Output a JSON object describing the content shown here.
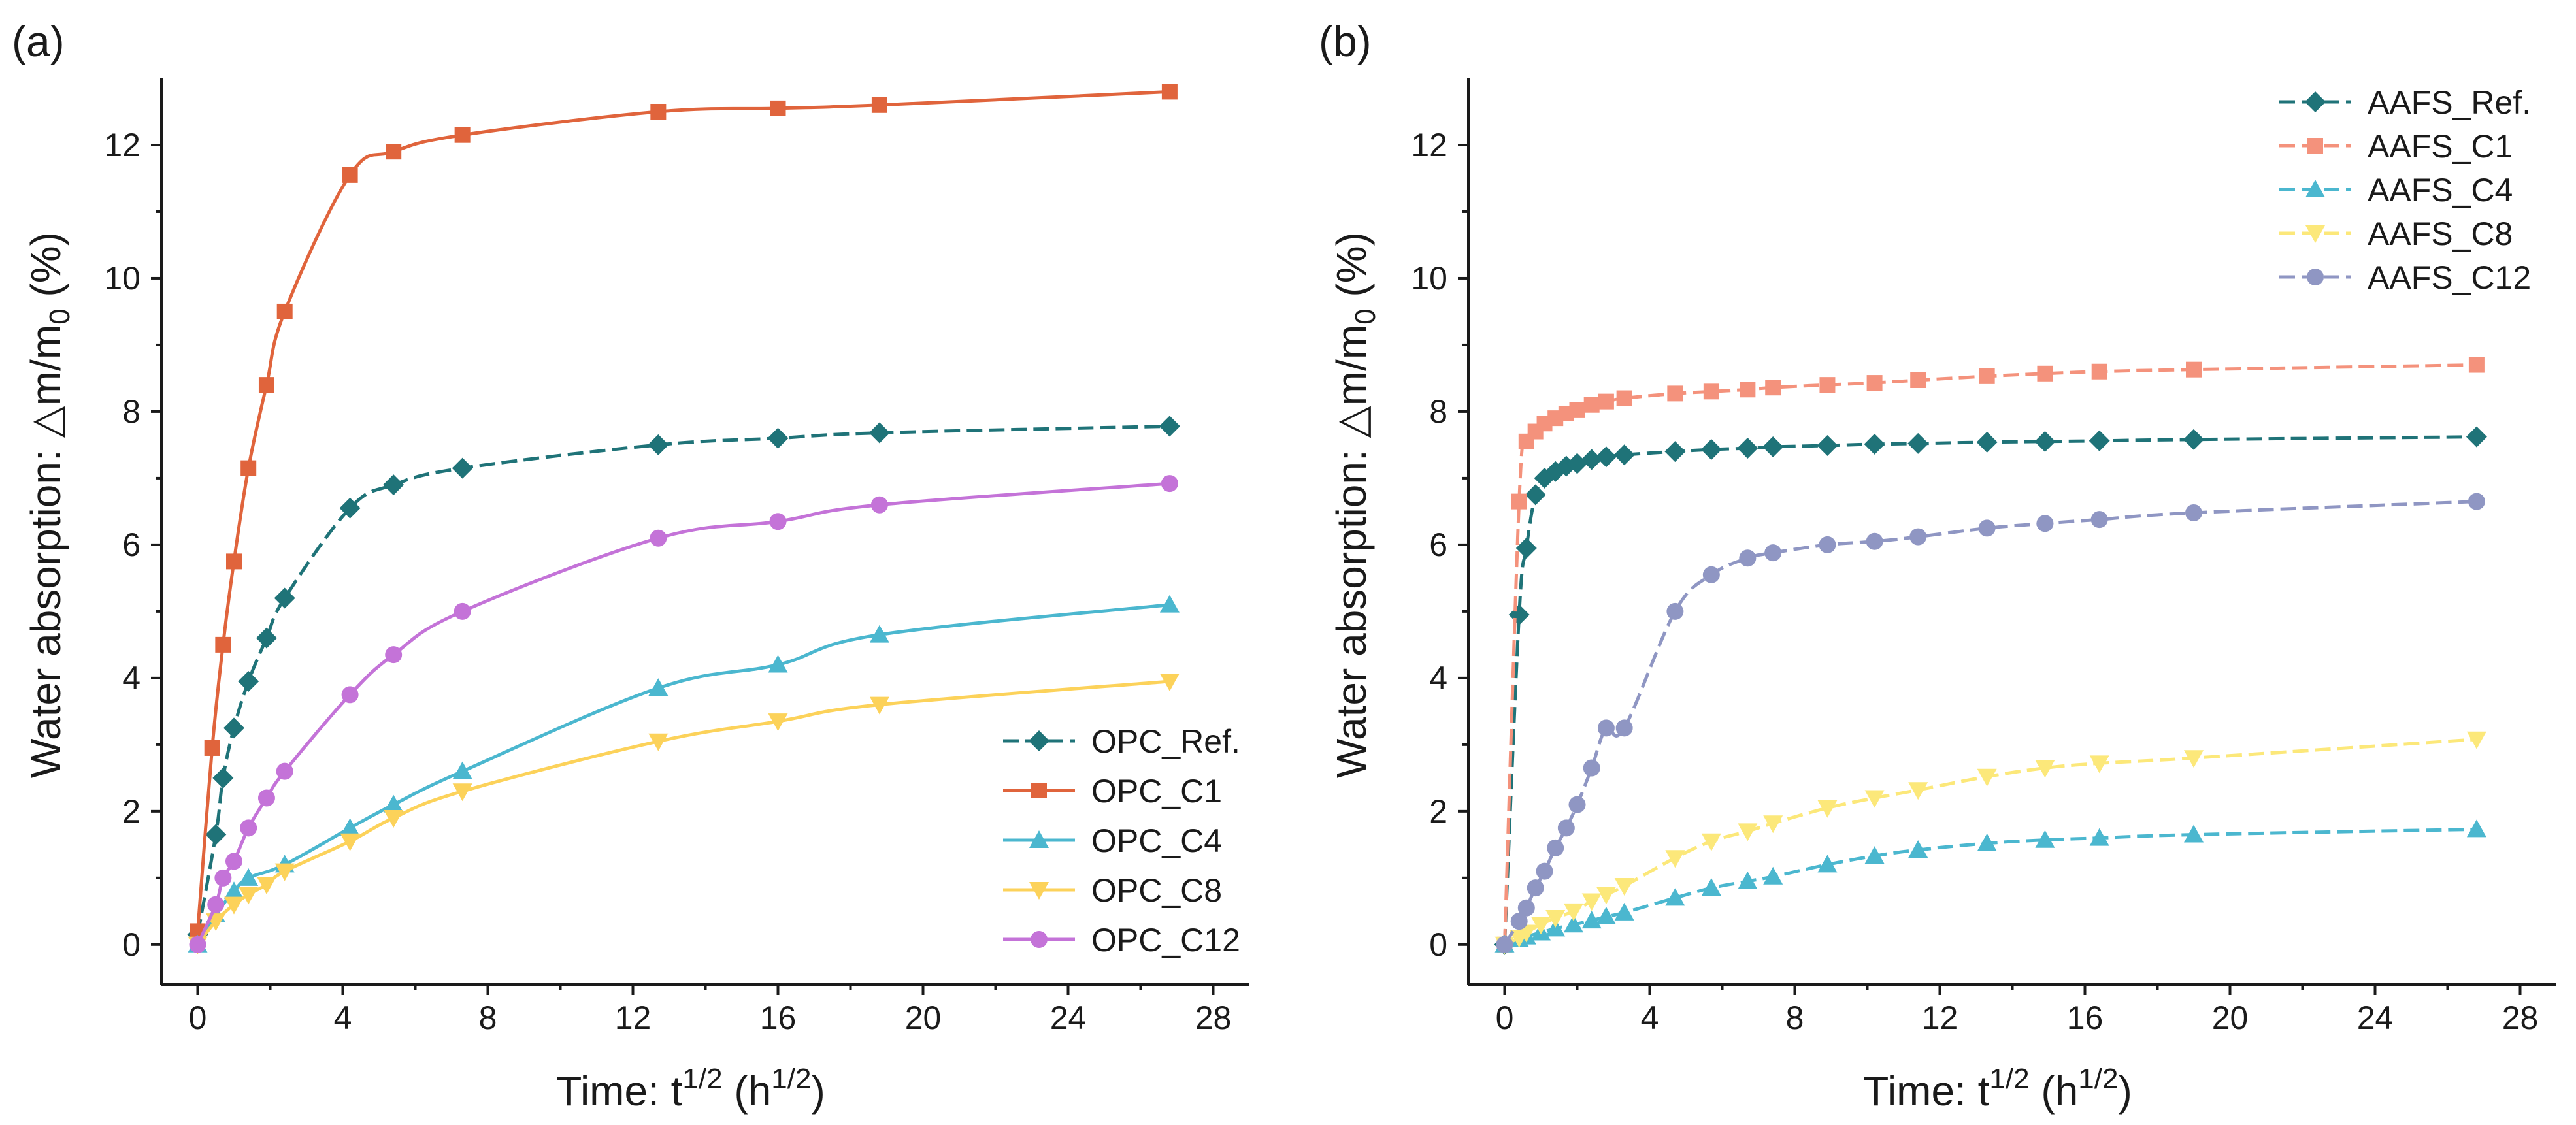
{
  "panels": [
    {
      "label": "(a)",
      "ylabel_main": "Water absorption: △m/m",
      "ylabel_sub": "0",
      "ylabel_tail": " (%)",
      "xlabel_main": "Time: t",
      "xlabel_sup": "1/2",
      "xlabel_mid": " (h",
      "xlabel_sup2": "1/2",
      "xlabel_tail": ")"
    },
    {
      "label": "(b)",
      "ylabel_main": "Water absorption: △m/m",
      "ylabel_sub": "0",
      "ylabel_tail": " (%)",
      "xlabel_main": "Time: t",
      "xlabel_sup": "1/2",
      "xlabel_mid": " (h",
      "xlabel_sup2": "1/2",
      "xlabel_tail": ")"
    }
  ],
  "chart_data": [
    {
      "type": "line",
      "panel": "(a)",
      "xlim": [
        -1,
        29
      ],
      "ylim": [
        -0.6,
        13.0
      ],
      "xticks": [
        0,
        4,
        8,
        12,
        16,
        20,
        24,
        28
      ],
      "yticks": [
        0,
        2,
        4,
        6,
        8,
        10,
        12
      ],
      "xtick_labels": [
        "0",
        "4",
        "8",
        "12",
        "16",
        "20",
        "24",
        "28"
      ],
      "ytick_labels": [
        "0",
        "2",
        "4",
        "6",
        "8",
        "10",
        "12"
      ],
      "legend_position": "bottom-right",
      "series": [
        {
          "name": "OPC_Ref.",
          "marker": "diamond",
          "color": "#1f7378",
          "dash": "dashed",
          "x": [
            0,
            0.5,
            0.7,
            1.0,
            1.4,
            1.9,
            2.4,
            4.2,
            5.4,
            7.3,
            12.7,
            16.0,
            18.8,
            26.8
          ],
          "y": [
            0.15,
            1.65,
            2.5,
            3.25,
            3.95,
            4.6,
            5.2,
            6.55,
            6.9,
            7.15,
            7.5,
            7.6,
            7.68,
            7.78
          ]
        },
        {
          "name": "OPC_C1",
          "marker": "square",
          "color": "#e0643c",
          "dash": "solid",
          "x": [
            0,
            0.4,
            0.7,
            1.0,
            1.4,
            1.9,
            2.4,
            4.2,
            5.4,
            7.3,
            12.7,
            16.0,
            18.8,
            26.8
          ],
          "y": [
            0.2,
            2.95,
            4.5,
            5.75,
            7.15,
            8.4,
            9.5,
            11.55,
            11.9,
            12.15,
            12.5,
            12.55,
            12.6,
            12.8
          ]
        },
        {
          "name": "OPC_C4",
          "marker": "triangle-up",
          "color": "#4bb7cf",
          "dash": "solid",
          "x": [
            0,
            0.5,
            1.0,
            1.4,
            2.4,
            4.2,
            5.4,
            7.3,
            12.7,
            16.0,
            18.8,
            26.8
          ],
          "y": [
            0,
            0.45,
            0.8,
            1.0,
            1.2,
            1.75,
            2.1,
            2.6,
            3.85,
            4.2,
            4.65,
            5.1
          ]
        },
        {
          "name": "OPC_C8",
          "marker": "triangle-down",
          "color": "#fcd25a",
          "dash": "solid",
          "x": [
            0,
            0.5,
            1.0,
            1.4,
            1.9,
            2.4,
            4.2,
            5.4,
            7.3,
            12.7,
            16.0,
            18.8,
            26.8
          ],
          "y": [
            0,
            0.35,
            0.6,
            0.75,
            0.9,
            1.1,
            1.55,
            1.9,
            2.3,
            3.05,
            3.35,
            3.6,
            3.95
          ]
        },
        {
          "name": "OPC_C12",
          "marker": "circle",
          "color": "#c473d8",
          "dash": "solid",
          "x": [
            0,
            0.5,
            0.7,
            1.0,
            1.4,
            1.9,
            2.4,
            4.2,
            5.4,
            7.3,
            12.7,
            16.0,
            18.8,
            26.8
          ],
          "y": [
            0,
            0.6,
            1.0,
            1.25,
            1.75,
            2.2,
            2.6,
            3.75,
            4.35,
            5.0,
            6.1,
            6.35,
            6.6,
            6.92
          ]
        }
      ]
    },
    {
      "type": "line",
      "panel": "(b)",
      "xlim": [
        -1,
        29
      ],
      "ylim": [
        -0.6,
        13.0
      ],
      "xticks": [
        0,
        4,
        8,
        12,
        16,
        20,
        24,
        28
      ],
      "yticks": [
        0,
        2,
        4,
        6,
        8,
        10,
        12
      ],
      "xtick_labels": [
        "0",
        "4",
        "8",
        "12",
        "16",
        "20",
        "24",
        "28"
      ],
      "ytick_labels": [
        "0",
        "2",
        "4",
        "6",
        "8",
        "10",
        "12"
      ],
      "legend_position": "top-right",
      "series": [
        {
          "name": "AAFS_Ref.",
          "marker": "diamond",
          "color": "#1f7378",
          "dash": "dashed",
          "x": [
            0,
            0.4,
            0.6,
            0.85,
            1.1,
            1.4,
            1.7,
            2.0,
            2.4,
            2.8,
            3.3,
            4.7,
            5.7,
            6.7,
            7.4,
            8.9,
            10.2,
            11.4,
            13.3,
            14.9,
            16.4,
            19.0,
            26.8
          ],
          "y": [
            0,
            4.95,
            5.95,
            6.75,
            7.0,
            7.1,
            7.18,
            7.22,
            7.28,
            7.32,
            7.35,
            7.4,
            7.43,
            7.45,
            7.47,
            7.49,
            7.51,
            7.52,
            7.54,
            7.55,
            7.56,
            7.58,
            7.62
          ]
        },
        {
          "name": "AAFS_C1",
          "marker": "square",
          "color": "#f4927c",
          "dash": "dashed",
          "x": [
            0,
            0.4,
            0.6,
            0.85,
            1.1,
            1.4,
            1.7,
            2.0,
            2.4,
            2.8,
            3.3,
            4.7,
            5.7,
            6.7,
            7.4,
            8.9,
            10.2,
            11.4,
            13.3,
            14.9,
            16.4,
            19.0,
            26.8
          ],
          "y": [
            0,
            6.65,
            7.55,
            7.7,
            7.82,
            7.9,
            7.97,
            8.02,
            8.1,
            8.15,
            8.2,
            8.27,
            8.3,
            8.33,
            8.36,
            8.4,
            8.43,
            8.47,
            8.53,
            8.57,
            8.6,
            8.63,
            8.7
          ]
        },
        {
          "name": "AAFS_C4",
          "marker": "triangle-up",
          "color": "#4bb7cf",
          "dash": "dashed",
          "x": [
            0,
            0.4,
            0.6,
            1.0,
            1.4,
            1.9,
            2.4,
            2.8,
            3.3,
            4.7,
            5.7,
            6.7,
            7.4,
            8.9,
            10.2,
            11.4,
            13.3,
            14.9,
            16.4,
            19.0,
            26.8
          ],
          "y": [
            0,
            0.08,
            0.12,
            0.18,
            0.24,
            0.3,
            0.36,
            0.42,
            0.48,
            0.7,
            0.85,
            0.95,
            1.02,
            1.2,
            1.33,
            1.42,
            1.52,
            1.57,
            1.6,
            1.65,
            1.73
          ]
        },
        {
          "name": "AAFS_C8",
          "marker": "triangle-down",
          "color": "#fce87a",
          "dash": "dashed",
          "x": [
            0,
            0.4,
            0.6,
            1.0,
            1.4,
            1.9,
            2.4,
            2.8,
            3.3,
            4.7,
            5.7,
            6.7,
            7.4,
            8.9,
            10.2,
            11.4,
            13.3,
            14.9,
            16.4,
            19.0,
            26.8
          ],
          "y": [
            0,
            0.1,
            0.18,
            0.3,
            0.4,
            0.5,
            0.65,
            0.75,
            0.88,
            1.3,
            1.55,
            1.7,
            1.82,
            2.05,
            2.2,
            2.32,
            2.52,
            2.65,
            2.72,
            2.8,
            3.08
          ]
        },
        {
          "name": "AAFS_C12",
          "marker": "circle",
          "color": "#8f96c3",
          "dash": "dashed",
          "x": [
            0,
            0.4,
            0.6,
            0.85,
            1.1,
            1.4,
            1.7,
            2.0,
            2.4,
            2.8,
            3.3,
            4.7,
            5.7,
            6.7,
            7.4,
            8.9,
            10.2,
            11.4,
            13.3,
            14.9,
            16.4,
            19.0,
            26.8
          ],
          "y": [
            0,
            0.35,
            0.55,
            0.85,
            1.1,
            1.45,
            1.75,
            2.1,
            2.65,
            3.25,
            3.25,
            5.0,
            5.55,
            5.8,
            5.88,
            6.0,
            6.05,
            6.12,
            6.25,
            6.32,
            6.38,
            6.48,
            6.65
          ]
        }
      ]
    }
  ]
}
